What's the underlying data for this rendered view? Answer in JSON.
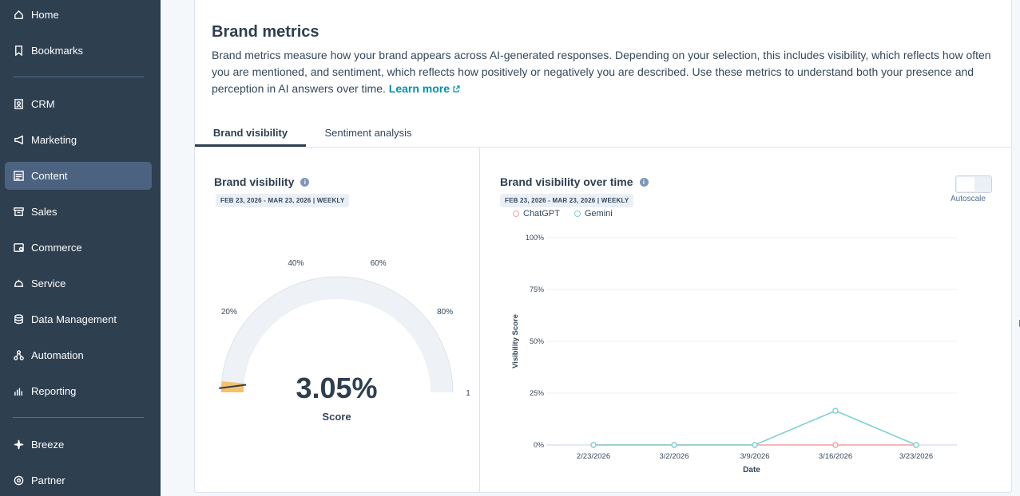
{
  "sidebar": {
    "items": [
      {
        "label": "Home",
        "icon": "home-icon"
      },
      {
        "label": "Bookmarks",
        "icon": "bookmark-icon"
      },
      {
        "label": "CRM",
        "icon": "contacts-icon"
      },
      {
        "label": "Marketing",
        "icon": "megaphone-icon"
      },
      {
        "label": "Content",
        "icon": "content-icon"
      },
      {
        "label": "Sales",
        "icon": "sales-icon"
      },
      {
        "label": "Commerce",
        "icon": "commerce-icon"
      },
      {
        "label": "Service",
        "icon": "service-icon"
      },
      {
        "label": "Data Management",
        "icon": "database-icon"
      },
      {
        "label": "Automation",
        "icon": "automation-icon"
      },
      {
        "label": "Reporting",
        "icon": "reporting-icon"
      },
      {
        "label": "Breeze",
        "icon": "sparkle-icon"
      },
      {
        "label": "Partner",
        "icon": "partner-icon"
      }
    ],
    "active": "Content"
  },
  "header": {
    "title": "Brand metrics",
    "description": "Brand metrics measure how your brand appears across AI-generated responses. Depending on your selection, this includes visibility, which reflects how often you are mentioned, and sentiment, which reflects how positively or negatively you are described. Use these metrics to understand both your presence and perception in AI answers over time.",
    "learn_more": "Learn more"
  },
  "tabs": [
    "Brand visibility",
    "Sentiment analysis"
  ],
  "active_tab": "Brand visibility",
  "gauge_panel": {
    "title": "Brand visibility",
    "date_range": "FEB 23, 2026 - MAR 23, 2026 | WEEKLY",
    "score_value": "3.05%",
    "score_label": "Score",
    "score_fraction": 0.0305,
    "ticks": [
      "20%",
      "40%",
      "60%",
      "80%",
      "1"
    ],
    "fill_color": "#f5c26b"
  },
  "line_panel": {
    "title": "Brand visibility over time",
    "date_range": "FEB 23, 2026 - MAR 23, 2026 | WEEKLY",
    "autoscale_label": "Autoscale",
    "autoscale_on": false
  },
  "chart_data": {
    "type": "line",
    "x": [
      "2/23/2026",
      "3/2/2026",
      "3/9/2026",
      "3/16/2026",
      "3/23/2026"
    ],
    "series": [
      {
        "name": "ChatGPT",
        "values": [
          0,
          0,
          0,
          0,
          0
        ],
        "color": "#f2a0a0"
      },
      {
        "name": "Gemini",
        "values": [
          0,
          0,
          0,
          16.5,
          0
        ],
        "color": "#7fd1d1"
      }
    ],
    "y_ticks": [
      "100%",
      "75%",
      "50%",
      "25%",
      "0%"
    ],
    "ylim": [
      0,
      100
    ],
    "xlabel": "Date",
    "ylabel": "Visibility Score",
    "legend": "top-left",
    "grid": true
  }
}
